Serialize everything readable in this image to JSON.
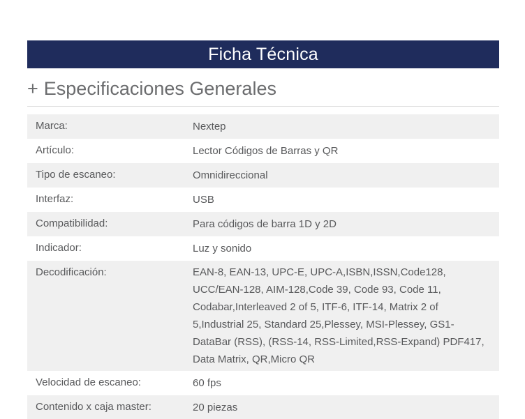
{
  "page": {
    "header": {
      "title": "Ficha Técnica"
    },
    "section": {
      "expand_icon": "+",
      "heading": "Especificaciones Generales"
    },
    "colors": {
      "navy": "#1f2c5c",
      "stripe": "#f0f0f0",
      "heading_gray": "#6b6c6e",
      "body_text": "#58595b"
    },
    "table": {
      "rows": [
        {
          "label": "Marca:",
          "value": "Nextep"
        },
        {
          "label": "Artículo:",
          "value": "Lector Códigos de Barras y QR"
        },
        {
          "label": "Tipo de escaneo:",
          "value": "Omnidireccional"
        },
        {
          "label": "Interfaz:",
          "value": "USB"
        },
        {
          "label": "Compatibilidad:",
          "value": "Para códigos de barra 1D y 2D"
        },
        {
          "label": "Indicador:",
          "value": "Luz y sonido"
        },
        {
          "label": "Decodificación:",
          "value": "EAN-8, EAN-13, UPC-E, UPC-A,ISBN,ISSN,Code128, UCC/EAN-128, AIM-128,Code 39, Code 93, Code 11, Codabar,Interleaved 2 of 5, ITF-6, ITF-14, Matrix 2 of 5,Industrial 25, Standard 25,Plessey, MSI-Plessey, GS1-DataBar (RSS), (RSS-14, RSS-Limited,RSS-Expand) PDF417, Data Matrix, QR,Micro QR"
        },
        {
          "label": "Velocidad de escaneo:",
          "value": "60 fps"
        },
        {
          "label": "Contenido x caja master:",
          "value": "20 piezas"
        }
      ]
    }
  }
}
